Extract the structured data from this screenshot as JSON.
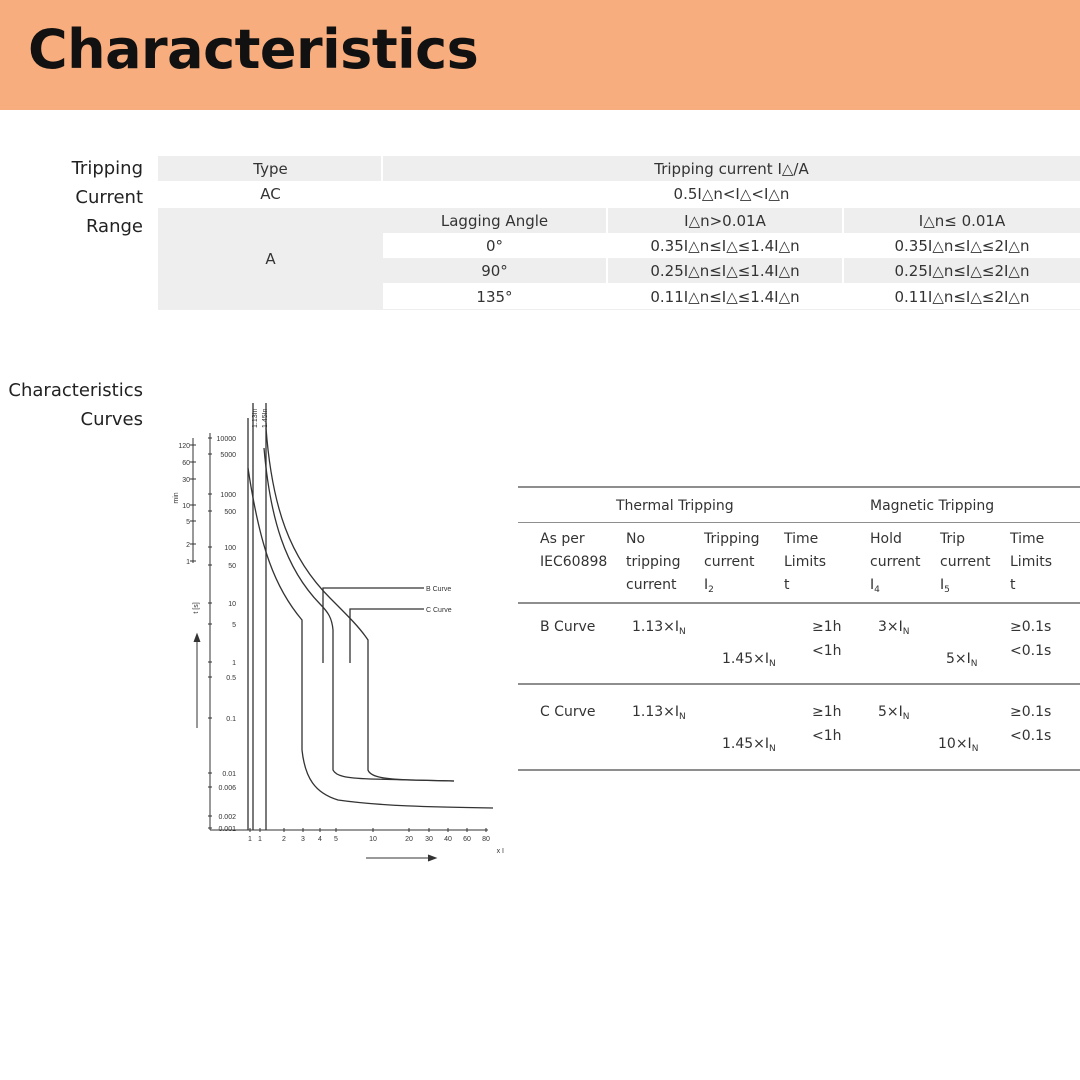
{
  "header": {
    "title": "Characteristics"
  },
  "tripping": {
    "side_label": [
      "Tripping",
      "Current",
      "Range"
    ],
    "header_type": "Type",
    "header_current": "Tripping current I△/A",
    "ac_type": "AC",
    "ac_value": "0.5I△n<I△<I△n",
    "a_type": "A",
    "lag_header": "Lagging Angle",
    "col1_header": "I△n>0.01A",
    "col2_header": "I△n≤ 0.01A",
    "rows": [
      {
        "angle": "0°",
        "v1": "0.35I△n≤I△≤1.4I△n",
        "v2": "0.35I△n≤I△≤2I△n"
      },
      {
        "angle": "90°",
        "v1": "0.25I△n≤I△≤1.4I△n",
        "v2": "0.25I△n≤I△≤2I△n"
      },
      {
        "angle": "135°",
        "v1": "0.11I△n≤I△≤1.4I△n",
        "v2": "0.11I△n≤I△≤2I△n"
      }
    ]
  },
  "curves": {
    "side_label": [
      "Characteristics",
      "Curves"
    ],
    "chart": {
      "left_scale": [
        "120",
        "60",
        "30",
        "10",
        "5",
        "2",
        "1"
      ],
      "left_unit": "min",
      "right_scale": [
        "10000",
        "5000",
        "1000",
        "500",
        "100",
        "50",
        "10",
        "5",
        "1",
        "0.5",
        "0.1",
        "0.01",
        "0.006",
        "0.002",
        "0.001"
      ],
      "t_unit": "t [s]",
      "x_ticks": [
        "1",
        "1",
        "2",
        "3",
        "4",
        "5",
        "10",
        "20",
        "30",
        "40",
        "60",
        "80"
      ],
      "x_unit": "x I",
      "top_labels": [
        "1.13In",
        "1.45In"
      ],
      "b_curve_label": "B Curve",
      "c_curve_label": "C Curve"
    },
    "table": {
      "thermal": "Thermal Tripping",
      "magnetic": "Magnetic Tripping",
      "col_heads": [
        [
          "As per",
          "IEC60898"
        ],
        [
          "No",
          "tripping",
          "current"
        ],
        [
          "Tripping",
          "current",
          "I"
        ],
        [
          "Time",
          "Limits",
          "t"
        ],
        [
          "Hold",
          "current",
          "I"
        ],
        [
          "Trip",
          "current",
          "I"
        ],
        [
          "Time",
          "Limits",
          "t"
        ]
      ],
      "col_subs": [
        "2",
        "4",
        "5"
      ],
      "rows": [
        {
          "name": "B Curve",
          "no_trip": "1.13×I",
          "trip": "1.45×I",
          "t1": "≥1h",
          "t2": "<1h",
          "hold": "3×I",
          "trip_cur": "5×I",
          "t3": "≥0.1s",
          "t4": "<0.1s"
        },
        {
          "name": "C Curve",
          "no_trip": "1.13×I",
          "trip": "1.45×I",
          "t1": "≥1h",
          "t2": "<1h",
          "hold": "5×I",
          "trip_cur": "10×I",
          "t3": "≥0.1s",
          "t4": "<0.1s"
        }
      ],
      "sub_n": "N"
    }
  }
}
